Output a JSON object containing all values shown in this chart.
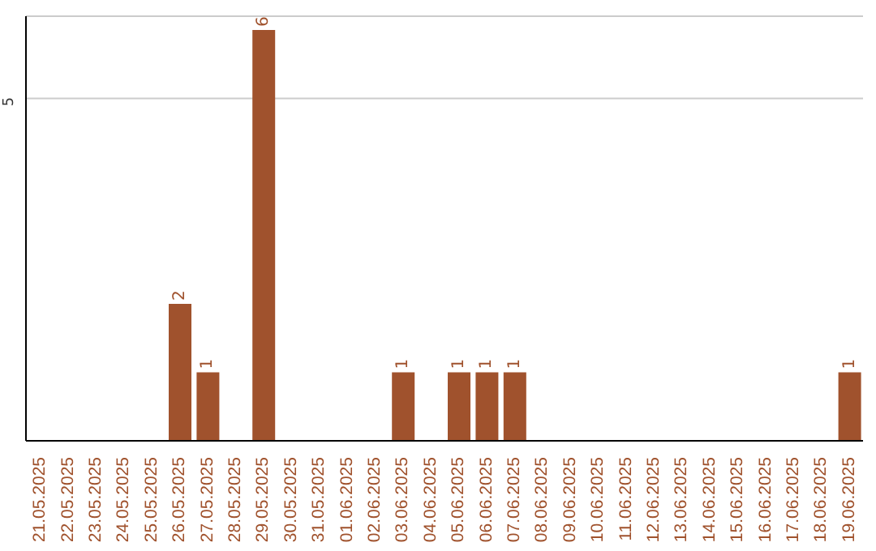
{
  "chart_data": {
    "type": "bar",
    "categories": [
      "21.05.2025",
      "22.05.2025",
      "23.05.2025",
      "24.05.2025",
      "25.05.2025",
      "26.05.2025",
      "27.05.2025",
      "28.05.2025",
      "29.05.2025",
      "30.05.2025",
      "31.05.2025",
      "01.06.2025",
      "02.06.2025",
      "03.06.2025",
      "04.06.2025",
      "05.06.2025",
      "06.06.2025",
      "07.06.2025",
      "08.06.2025",
      "09.06.2025",
      "10.06.2025",
      "11.06.2025",
      "12.06.2025",
      "13.06.2025",
      "14.06.2025",
      "15.06.2025",
      "16.06.2025",
      "17.06.2025",
      "18.06.2025",
      "19.06.2025"
    ],
    "values": [
      0,
      0,
      0,
      0,
      0,
      2,
      1,
      0,
      6,
      0,
      0,
      0,
      0,
      1,
      0,
      1,
      1,
      1,
      0,
      0,
      0,
      0,
      0,
      0,
      0,
      0,
      0,
      0,
      0,
      1
    ],
    "value_labels": [
      null,
      null,
      null,
      null,
      null,
      "2",
      "1",
      null,
      "6",
      null,
      null,
      null,
      null,
      "1",
      null,
      "1",
      "1",
      "1",
      null,
      null,
      null,
      null,
      null,
      null,
      null,
      null,
      null,
      null,
      null,
      "1"
    ],
    "color": "#a0522d",
    "ylim": [
      0,
      6.2
    ],
    "yticks": [
      5
    ],
    "grid": "y",
    "legend": false
  }
}
